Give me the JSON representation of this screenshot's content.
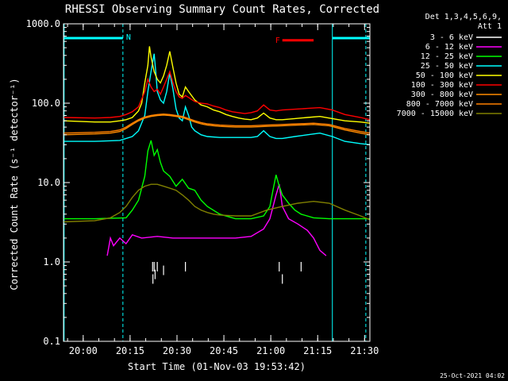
{
  "chart_data": {
    "type": "line",
    "title": "RHESSI Observing Summary Count Rates, Corrected",
    "xlabel": "Start Time (01-Nov-03 19:53:42)",
    "ylabel": "Corrected Count Rate (s⁻¹ detector⁻¹)",
    "yscale": "log",
    "ylim": [
      0.1,
      1000.0
    ],
    "xlim_minutes": [
      0.0,
      98.0
    ],
    "x_unit": "minutes after 19:53:42",
    "xticks": [
      {
        "label": "20:00",
        "minutes": 6.3
      },
      {
        "label": "20:15",
        "minutes": 21.3
      },
      {
        "label": "20:30",
        "minutes": 36.3
      },
      {
        "label": "20:45",
        "minutes": 51.3
      },
      {
        "label": "21:00",
        "minutes": 66.3
      },
      {
        "label": "21:15",
        "minutes": 81.3
      },
      {
        "label": "21:30",
        "minutes": 96.3
      }
    ],
    "yticks": [
      {
        "label": "0.1",
        "value": 0.1
      },
      {
        "label": "1.0",
        "value": 1.0
      },
      {
        "label": "10.0",
        "value": 10.0
      },
      {
        "label": "100.0",
        "value": 100.0
      },
      {
        "label": "1000.0",
        "value": 1000.0
      }
    ],
    "legend_header": [
      "Det 1,3,4,5,6,9,",
      "Att 1"
    ],
    "legend_placement": "right",
    "flags": [
      {
        "label": "N",
        "color": "#00ffff",
        "x_start": 0.2,
        "x_end": 19.0,
        "y": 660
      },
      {
        "label": "N",
        "color": "#00ffff",
        "x_start": 86.0,
        "x_end": 98.0,
        "y": 660
      },
      {
        "label": "F",
        "color": "#ff0000",
        "x_start": 70.0,
        "x_end": 80.0,
        "y": 620
      }
    ],
    "vlines": [
      {
        "minutes": 0.2,
        "style": "solid"
      },
      {
        "minutes": 19.0,
        "style": "dashed"
      },
      {
        "minutes": 86.0,
        "style": "solid"
      },
      {
        "minutes": 96.7,
        "style": "dashed"
      }
    ],
    "series": [
      {
        "name": "3 - 6 keV",
        "color": "#ffffff",
        "kind": "spikes",
        "points": [
          [
            28.5,
            1.0
          ],
          [
            28.6,
            0.7
          ],
          [
            29.0,
            1.0
          ],
          [
            29.3,
            0.8
          ],
          [
            30.0,
            1.0
          ],
          [
            32.0,
            0.9
          ],
          [
            39.0,
            1.0
          ],
          [
            69.0,
            1.0
          ],
          [
            70.0,
            0.7
          ],
          [
            76.0,
            1.0
          ]
        ]
      },
      {
        "name": "6 - 12 keV",
        "color": "#ff00ff",
        "kind": "line",
        "points": [
          [
            14,
            1.2
          ],
          [
            15,
            2.0
          ],
          [
            16,
            1.6
          ],
          [
            18,
            2.0
          ],
          [
            20,
            1.7
          ],
          [
            22,
            2.2
          ],
          [
            25,
            2.0
          ],
          [
            30,
            2.1
          ],
          [
            35,
            2.0
          ],
          [
            40,
            2.0
          ],
          [
            45,
            2.0
          ],
          [
            50,
            2.0
          ],
          [
            55,
            2.0
          ],
          [
            60,
            2.1
          ],
          [
            64,
            2.6
          ],
          [
            66,
            3.5
          ],
          [
            68,
            7.0
          ],
          [
            69,
            9.5
          ],
          [
            69.5,
            7.0
          ],
          [
            70,
            5.0
          ],
          [
            72,
            3.5
          ],
          [
            75,
            3.0
          ],
          [
            78,
            2.5
          ],
          [
            80,
            2.0
          ],
          [
            82,
            1.4
          ],
          [
            84,
            1.2
          ]
        ]
      },
      {
        "name": "12 - 25 keV",
        "color": "#00ff00",
        "kind": "line",
        "points": [
          [
            0,
            3.5
          ],
          [
            10,
            3.5
          ],
          [
            20,
            3.6
          ],
          [
            22,
            4.5
          ],
          [
            24,
            6.0
          ],
          [
            26,
            12.0
          ],
          [
            27,
            25.0
          ],
          [
            28,
            34.0
          ],
          [
            29,
            22.0
          ],
          [
            30,
            26.0
          ],
          [
            31,
            18.0
          ],
          [
            32,
            14.0
          ],
          [
            34,
            12.0
          ],
          [
            36,
            9.0
          ],
          [
            38,
            11.0
          ],
          [
            40,
            8.5
          ],
          [
            42,
            8.0
          ],
          [
            44,
            6.0
          ],
          [
            46,
            5.0
          ],
          [
            50,
            4.0
          ],
          [
            55,
            3.5
          ],
          [
            60,
            3.5
          ],
          [
            64,
            3.8
          ],
          [
            66,
            5.0
          ],
          [
            67,
            8.0
          ],
          [
            68,
            12.5
          ],
          [
            69,
            9.0
          ],
          [
            70,
            7.0
          ],
          [
            72,
            5.5
          ],
          [
            74,
            4.5
          ],
          [
            76,
            4.0
          ],
          [
            80,
            3.6
          ],
          [
            85,
            3.5
          ],
          [
            90,
            3.5
          ],
          [
            98,
            3.5
          ]
        ]
      },
      {
        "name": "25 - 50 keV",
        "color": "#00ffff",
        "kind": "line",
        "points": [
          [
            0,
            33
          ],
          [
            10,
            33
          ],
          [
            18,
            34
          ],
          [
            22,
            38
          ],
          [
            24,
            45
          ],
          [
            26,
            70
          ],
          [
            27,
            140
          ],
          [
            28,
            250
          ],
          [
            29,
            420
          ],
          [
            29.5,
            250
          ],
          [
            30,
            140
          ],
          [
            31,
            110
          ],
          [
            32,
            100
          ],
          [
            33,
            140
          ],
          [
            34,
            240
          ],
          [
            35,
            150
          ],
          [
            36,
            85
          ],
          [
            37,
            65
          ],
          [
            38,
            60
          ],
          [
            39,
            90
          ],
          [
            40,
            70
          ],
          [
            41,
            50
          ],
          [
            42,
            45
          ],
          [
            44,
            40
          ],
          [
            46,
            38
          ],
          [
            50,
            37
          ],
          [
            55,
            37
          ],
          [
            60,
            37
          ],
          [
            62,
            38
          ],
          [
            64,
            45
          ],
          [
            66,
            38
          ],
          [
            68,
            36
          ],
          [
            70,
            36
          ],
          [
            74,
            38
          ],
          [
            78,
            40
          ],
          [
            82,
            42
          ],
          [
            86,
            38
          ],
          [
            90,
            33
          ],
          [
            95,
            31
          ],
          [
            98,
            30
          ]
        ]
      },
      {
        "name": "50 - 100 keV",
        "color": "#ffff00",
        "kind": "line",
        "points": [
          [
            0,
            60
          ],
          [
            10,
            58
          ],
          [
            15,
            58
          ],
          [
            18,
            60
          ],
          [
            20,
            62
          ],
          [
            22,
            66
          ],
          [
            24,
            80
          ],
          [
            25,
            100
          ],
          [
            26,
            180
          ],
          [
            27,
            300
          ],
          [
            27.5,
            520
          ],
          [
            28,
            380
          ],
          [
            29,
            250
          ],
          [
            30,
            200
          ],
          [
            31,
            180
          ],
          [
            32,
            220
          ],
          [
            33,
            300
          ],
          [
            34,
            450
          ],
          [
            35,
            280
          ],
          [
            36,
            180
          ],
          [
            37,
            130
          ],
          [
            38,
            120
          ],
          [
            39,
            160
          ],
          [
            40,
            140
          ],
          [
            42,
            110
          ],
          [
            44,
            95
          ],
          [
            46,
            90
          ],
          [
            48,
            82
          ],
          [
            50,
            78
          ],
          [
            52,
            72
          ],
          [
            54,
            68
          ],
          [
            56,
            65
          ],
          [
            58,
            63
          ],
          [
            60,
            62
          ],
          [
            62,
            65
          ],
          [
            64,
            75
          ],
          [
            66,
            65
          ],
          [
            68,
            62
          ],
          [
            70,
            62
          ],
          [
            74,
            64
          ],
          [
            78,
            66
          ],
          [
            82,
            68
          ],
          [
            86,
            64
          ],
          [
            90,
            60
          ],
          [
            95,
            58
          ],
          [
            98,
            56
          ]
        ]
      },
      {
        "name": "100 - 300 keV",
        "color": "#ff0000",
        "kind": "line",
        "points": [
          [
            0,
            66
          ],
          [
            10,
            65
          ],
          [
            15,
            66
          ],
          [
            18,
            68
          ],
          [
            20,
            72
          ],
          [
            22,
            78
          ],
          [
            24,
            90
          ],
          [
            26,
            140
          ],
          [
            27,
            200
          ],
          [
            28,
            160
          ],
          [
            29,
            140
          ],
          [
            30,
            150
          ],
          [
            31,
            130
          ],
          [
            32,
            160
          ],
          [
            33,
            200
          ],
          [
            34,
            250
          ],
          [
            35,
            180
          ],
          [
            36,
            140
          ],
          [
            37,
            120
          ],
          [
            38,
            115
          ],
          [
            39,
            125
          ],
          [
            40,
            118
          ],
          [
            42,
            105
          ],
          [
            44,
            100
          ],
          [
            46,
            98
          ],
          [
            48,
            92
          ],
          [
            50,
            88
          ],
          [
            52,
            82
          ],
          [
            54,
            78
          ],
          [
            56,
            76
          ],
          [
            58,
            74
          ],
          [
            60,
            76
          ],
          [
            62,
            80
          ],
          [
            64,
            95
          ],
          [
            66,
            82
          ],
          [
            68,
            80
          ],
          [
            70,
            82
          ],
          [
            74,
            84
          ],
          [
            78,
            86
          ],
          [
            82,
            88
          ],
          [
            86,
            82
          ],
          [
            90,
            72
          ],
          [
            95,
            66
          ],
          [
            98,
            62
          ]
        ]
      },
      {
        "name": "300 - 800 keV",
        "color": "#ff8c00",
        "kind": "line",
        "points": [
          [
            0,
            40
          ],
          [
            10,
            41
          ],
          [
            15,
            42
          ],
          [
            18,
            44
          ],
          [
            20,
            48
          ],
          [
            22,
            54
          ],
          [
            24,
            60
          ],
          [
            26,
            65
          ],
          [
            28,
            68
          ],
          [
            30,
            70
          ],
          [
            32,
            71
          ],
          [
            34,
            70
          ],
          [
            36,
            68
          ],
          [
            38,
            66
          ],
          [
            40,
            62
          ],
          [
            42,
            58
          ],
          [
            44,
            55
          ],
          [
            46,
            53
          ],
          [
            48,
            52
          ],
          [
            50,
            51
          ],
          [
            55,
            50
          ],
          [
            60,
            50
          ],
          [
            65,
            51
          ],
          [
            70,
            52
          ],
          [
            75,
            53
          ],
          [
            80,
            54
          ],
          [
            85,
            52
          ],
          [
            90,
            46
          ],
          [
            95,
            42
          ],
          [
            98,
            40
          ]
        ]
      },
      {
        "name": "800 - 7000 keV",
        "color": "#ff8000",
        "kind": "line",
        "points": [
          [
            0,
            42
          ],
          [
            10,
            43
          ],
          [
            15,
            44
          ],
          [
            18,
            46
          ],
          [
            20,
            50
          ],
          [
            22,
            56
          ],
          [
            24,
            62
          ],
          [
            26,
            67
          ],
          [
            28,
            70
          ],
          [
            30,
            72
          ],
          [
            32,
            73
          ],
          [
            34,
            72
          ],
          [
            36,
            70
          ],
          [
            38,
            68
          ],
          [
            40,
            64
          ],
          [
            42,
            60
          ],
          [
            44,
            57
          ],
          [
            46,
            55
          ],
          [
            48,
            54
          ],
          [
            50,
            53
          ],
          [
            55,
            52
          ],
          [
            60,
            52
          ],
          [
            65,
            53
          ],
          [
            70,
            54
          ],
          [
            75,
            55
          ],
          [
            80,
            56
          ],
          [
            85,
            54
          ],
          [
            90,
            48
          ],
          [
            95,
            44
          ],
          [
            98,
            42
          ]
        ]
      },
      {
        "name": "7000 - 15000 keV",
        "color": "#808000",
        "kind": "line",
        "points": [
          [
            0,
            3.2
          ],
          [
            10,
            3.3
          ],
          [
            15,
            3.6
          ],
          [
            18,
            4.2
          ],
          [
            20,
            5.0
          ],
          [
            22,
            6.5
          ],
          [
            24,
            8.0
          ],
          [
            26,
            9.0
          ],
          [
            28,
            9.5
          ],
          [
            30,
            9.5
          ],
          [
            32,
            9.0
          ],
          [
            34,
            8.5
          ],
          [
            36,
            8.0
          ],
          [
            38,
            7.0
          ],
          [
            40,
            6.0
          ],
          [
            42,
            5.0
          ],
          [
            44,
            4.5
          ],
          [
            46,
            4.2
          ],
          [
            48,
            4.0
          ],
          [
            50,
            3.9
          ],
          [
            55,
            3.8
          ],
          [
            60,
            3.8
          ],
          [
            65,
            4.5
          ],
          [
            70,
            5.0
          ],
          [
            75,
            5.5
          ],
          [
            80,
            5.8
          ],
          [
            85,
            5.5
          ],
          [
            90,
            4.5
          ],
          [
            95,
            3.8
          ],
          [
            98,
            3.4
          ]
        ]
      }
    ]
  },
  "timestamp": "25-Oct-2021 04:02"
}
